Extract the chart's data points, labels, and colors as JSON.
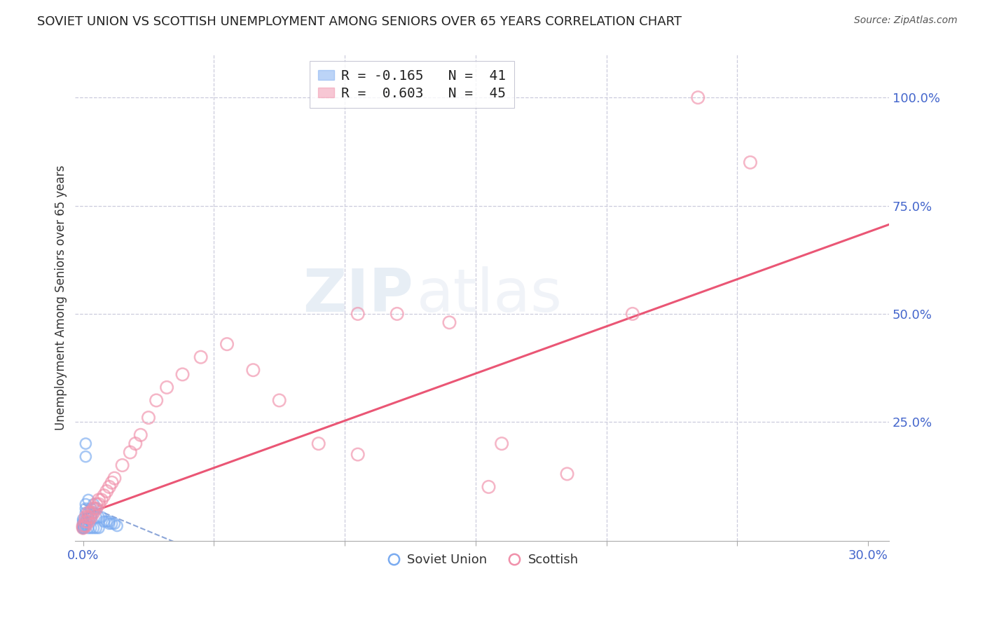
{
  "title": "SOVIET UNION VS SCOTTISH UNEMPLOYMENT AMONG SENIORS OVER 65 YEARS CORRELATION CHART",
  "source": "Source: ZipAtlas.com",
  "ylabel": "Unemployment Among Seniors over 65 years",
  "xlim": [
    -0.003,
    0.308
  ],
  "ylim": [
    -0.025,
    1.1
  ],
  "legend_entries": [
    {
      "label": "R = -0.165   N =  41",
      "color": "#89b4f8"
    },
    {
      "label": "R =  0.603   N =  45",
      "color": "#f4a0b0"
    }
  ],
  "soviet_x": [
    0.0,
    0.0,
    0.0,
    0.0,
    0.0,
    0.0,
    0.0,
    0.0,
    0.0,
    0.0,
    0.001,
    0.001,
    0.001,
    0.001,
    0.001,
    0.001,
    0.002,
    0.002,
    0.002,
    0.003,
    0.003,
    0.004,
    0.004,
    0.005,
    0.005,
    0.006,
    0.007,
    0.008,
    0.009,
    0.01,
    0.01,
    0.011,
    0.012,
    0.013,
    0.001,
    0.001,
    0.002,
    0.003,
    0.004,
    0.005,
    0.006
  ],
  "soviet_y": [
    0.005,
    0.005,
    0.005,
    0.005,
    0.005,
    0.01,
    0.01,
    0.015,
    0.02,
    0.025,
    0.01,
    0.015,
    0.02,
    0.04,
    0.05,
    0.06,
    0.03,
    0.04,
    0.07,
    0.03,
    0.05,
    0.04,
    0.06,
    0.03,
    0.05,
    0.03,
    0.03,
    0.02,
    0.02,
    0.015,
    0.02,
    0.015,
    0.015,
    0.01,
    0.17,
    0.2,
    0.005,
    0.005,
    0.005,
    0.005,
    0.005
  ],
  "scottish_x": [
    0.0,
    0.0,
    0.001,
    0.001,
    0.001,
    0.002,
    0.002,
    0.002,
    0.003,
    0.003,
    0.004,
    0.004,
    0.005,
    0.005,
    0.006,
    0.006,
    0.007,
    0.008,
    0.009,
    0.01,
    0.011,
    0.012,
    0.015,
    0.018,
    0.02,
    0.022,
    0.025,
    0.028,
    0.032,
    0.038,
    0.045,
    0.055,
    0.065,
    0.075,
    0.09,
    0.105,
    0.12,
    0.14,
    0.16,
    0.185,
    0.21,
    0.105,
    0.155,
    0.235,
    0.255
  ],
  "scottish_y": [
    0.005,
    0.01,
    0.01,
    0.02,
    0.03,
    0.02,
    0.03,
    0.04,
    0.03,
    0.04,
    0.04,
    0.05,
    0.05,
    0.06,
    0.06,
    0.07,
    0.07,
    0.08,
    0.09,
    0.1,
    0.11,
    0.12,
    0.15,
    0.18,
    0.2,
    0.22,
    0.26,
    0.3,
    0.33,
    0.36,
    0.4,
    0.43,
    0.37,
    0.3,
    0.2,
    0.175,
    0.5,
    0.48,
    0.2,
    0.13,
    0.5,
    0.5,
    0.1,
    1.0,
    0.85
  ],
  "trend_soviet_slope": -2.5,
  "trend_soviet_intercept": 0.06,
  "trend_scottish_slope": 2.18,
  "trend_scottish_intercept": 0.035,
  "watermark_zip": "ZIP",
  "watermark_atlas": "atlas",
  "bg_color": "#ffffff",
  "soviet_color": "#7aabf0",
  "scottish_color": "#f090aa",
  "trend_soviet_color": "#6688cc",
  "trend_scottish_color": "#e84466",
  "grid_color": "#ccccdd",
  "title_color": "#222222",
  "axis_label_color": "#333333",
  "right_tick_color": "#4466cc",
  "bottom_tick_color": "#4466cc",
  "source_color": "#555555"
}
